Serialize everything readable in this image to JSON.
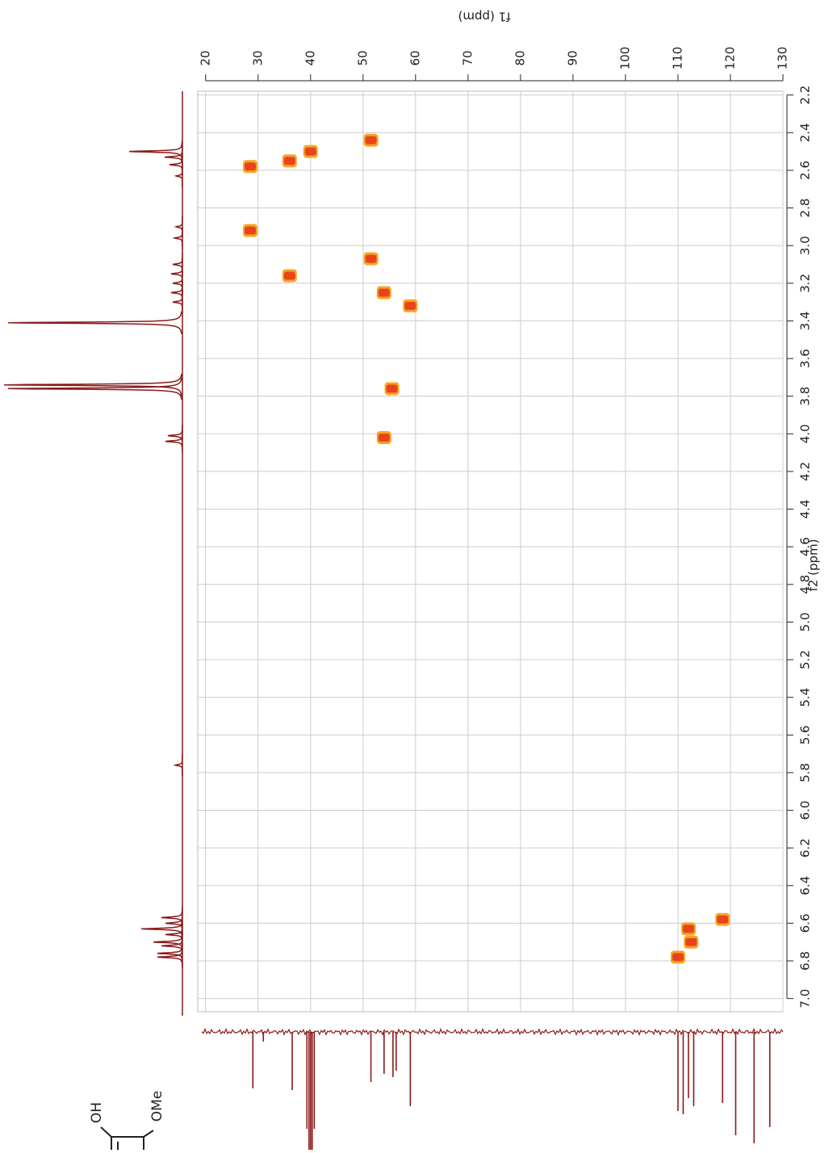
{
  "chart_data": {
    "type": "hsqc",
    "x_label": "f1 (ppm)",
    "y_label": "f2 (ppm)",
    "xlim": [
      18.5,
      130
    ],
    "xticks": [
      20,
      30,
      40,
      50,
      60,
      70,
      80,
      90,
      100,
      110,
      120,
      130
    ],
    "ylim": [
      2.18,
      7.07
    ],
    "yticks": [
      2.2,
      2.4,
      2.6,
      2.8,
      {
        "value": 3,
        "label": "3.0"
      },
      3.2,
      3.4,
      3.6,
      3.8,
      {
        "value": 4,
        "label": "4.0"
      },
      4.2,
      4.4,
      4.6,
      4.8,
      {
        "value": 5,
        "label": "5.0"
      },
      5.2,
      5.4,
      5.6,
      5.8,
      {
        "value": 6,
        "label": "6.0"
      },
      6.2,
      6.4,
      6.6,
      6.8,
      {
        "value": 7,
        "label": "7.0"
      }
    ],
    "grid": true,
    "color": "#e8441c",
    "cross_peaks": {
      "x": [
        28.5,
        28.5,
        36,
        40,
        51.5,
        51.5,
        36,
        54,
        59,
        55.5,
        54,
        110,
        112,
        112.5,
        118.5
      ],
      "y": [
        2.58,
        2.92,
        2.55,
        2.5,
        2.44,
        3.07,
        3.16,
        3.25,
        3.32,
        3.76,
        4.02,
        6.78,
        6.63,
        6.7,
        6.58
      ]
    },
    "f2_projection": {
      "color": "#8b1a1a",
      "ppm": [
        2.5,
        2.53,
        2.57,
        2.63,
        2.9,
        2.96,
        3.1,
        3.15,
        3.2,
        3.25,
        3.3,
        3.41,
        3.74,
        3.76,
        4.01,
        4.04,
        5.76,
        6.57,
        6.6,
        6.63,
        6.66,
        6.7,
        6.72,
        6.76,
        6.78
      ],
      "intensity": [
        66,
        22,
        16,
        8,
        8,
        10,
        12,
        14,
        12,
        14,
        12,
        216,
        221,
        216,
        18,
        21,
        9,
        26,
        21,
        51,
        21,
        36,
        26,
        31,
        31
      ]
    },
    "f1_projection": {
      "color": "#8b1a1a",
      "ppm": [
        29,
        31,
        36.5,
        39.3,
        39.7,
        40.0,
        40.3,
        40.7,
        51.5,
        54,
        55.7,
        56.3,
        59,
        110,
        111,
        112,
        113,
        118.5,
        121,
        124.5,
        127.5
      ],
      "intensity": [
        70,
        12,
        72,
        120,
        146,
        150,
        146,
        120,
        62,
        52,
        56,
        48,
        92,
        98,
        102,
        82,
        92,
        88,
        128,
        138,
        118
      ]
    }
  },
  "structure": {
    "labels": [
      "OH",
      "OMe"
    ]
  }
}
